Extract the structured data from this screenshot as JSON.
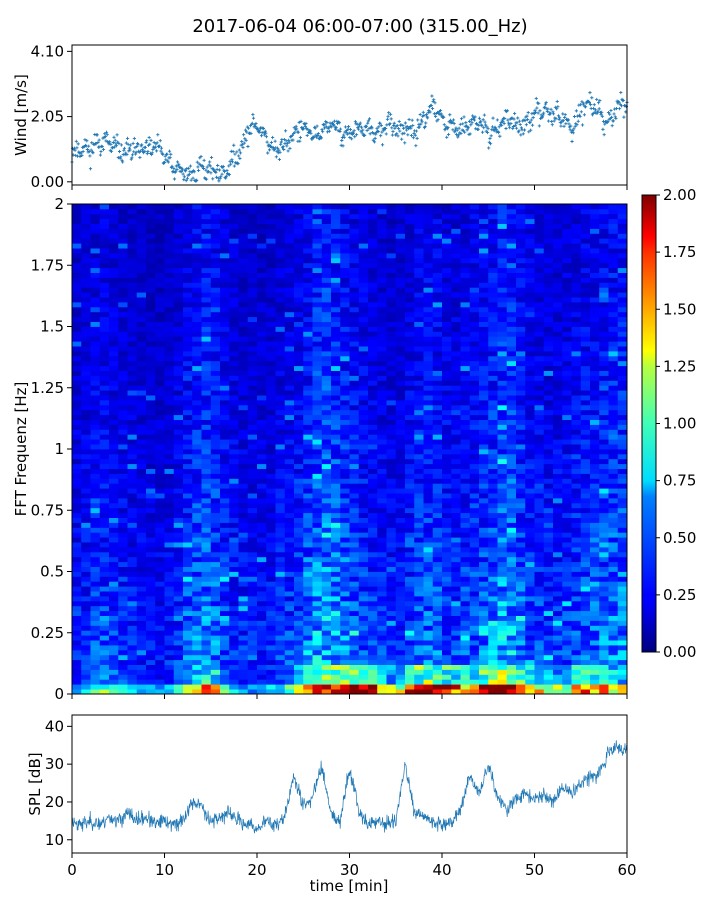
{
  "figure": {
    "title": "2017-06-04 06:00-07:00 (315.00_Hz)"
  },
  "colors": {
    "series": "#1f77b4",
    "colormap": "jet"
  },
  "chart_data": [
    {
      "type": "scatter",
      "panel": "wind",
      "title": "2017-06-04 06:00-07:00 (315.00_Hz)",
      "xlabel": "",
      "ylabel": "Wind [m/s]",
      "xlim": [
        0,
        60
      ],
      "ylim": [
        -0.1,
        4.3
      ],
      "yticks": [
        0.0,
        2.05,
        4.1
      ],
      "ytick_labels": [
        "0.00",
        "2.05",
        "4.10"
      ],
      "marker": "+",
      "grid": false,
      "x": [
        0,
        1,
        2,
        3,
        4,
        5,
        6,
        7,
        8,
        9,
        10,
        11,
        12,
        13,
        14,
        15,
        16,
        17,
        18,
        19,
        20,
        21,
        22,
        23,
        24,
        25,
        26,
        27,
        28,
        29,
        30,
        31,
        32,
        33,
        34,
        35,
        36,
        37,
        38,
        39,
        40,
        41,
        42,
        43,
        44,
        45,
        46,
        47,
        48,
        49,
        50,
        51,
        52,
        53,
        54,
        55,
        56,
        57,
        58,
        59,
        60
      ],
      "y": [
        0.9,
        1.1,
        1.0,
        1.3,
        1.2,
        1.0,
        0.9,
        1.1,
        1.0,
        1.1,
        0.8,
        0.4,
        0.3,
        0.2,
        0.5,
        0.4,
        0.2,
        0.5,
        0.9,
        1.6,
        1.8,
        1.4,
        0.9,
        1.2,
        1.5,
        1.7,
        1.4,
        1.6,
        1.8,
        1.6,
        1.5,
        1.7,
        1.6,
        1.5,
        1.8,
        1.7,
        1.6,
        1.5,
        2.0,
        2.4,
        1.9,
        1.7,
        1.6,
        1.8,
        1.9,
        1.5,
        1.7,
        2.0,
        1.8,
        1.7,
        2.1,
        2.3,
        2.2,
        2.0,
        1.6,
        2.3,
        2.5,
        2.2,
        1.8,
        2.4,
        2.6
      ]
    },
    {
      "type": "heatmap",
      "panel": "spectrogram",
      "xlabel": "",
      "ylabel": "FFT Frequenz [Hz]",
      "xlim": [
        0,
        60
      ],
      "ylim": [
        0,
        2
      ],
      "yticks": [
        0,
        0.25,
        0.5,
        0.75,
        1,
        1.25,
        1.5,
        1.75,
        2
      ],
      "ytick_labels": [
        "0",
        "0.25",
        "0.5",
        "0.75",
        "1",
        "1.25",
        "1.5",
        "1.75",
        "2"
      ],
      "colorbar": {
        "range": [
          0.0,
          2.0
        ],
        "ticks": [
          "0.00",
          "0.25",
          "0.50",
          "0.75",
          "1.00",
          "1.25",
          "1.50",
          "1.75",
          "2.00"
        ],
        "colormap": "jet",
        "location": "right"
      },
      "time_columns_min": [
        0,
        2,
        4,
        6,
        8,
        10,
        12,
        14,
        16,
        18,
        20,
        22,
        24,
        26,
        28,
        30,
        32,
        34,
        36,
        38,
        40,
        42,
        44,
        46,
        48,
        50,
        52,
        54,
        56,
        58
      ],
      "mean_intensity_per_column": [
        0.25,
        0.35,
        0.28,
        0.25,
        0.22,
        0.25,
        0.4,
        0.45,
        0.3,
        0.25,
        0.25,
        0.3,
        0.35,
        0.55,
        0.45,
        0.35,
        0.3,
        0.25,
        0.35,
        0.4,
        0.3,
        0.35,
        0.4,
        0.55,
        0.35,
        0.3,
        0.3,
        0.35,
        0.4,
        0.45
      ],
      "low_freq_peak_per_column": [
        0.6,
        1.0,
        0.8,
        0.6,
        0.5,
        0.6,
        1.2,
        1.6,
        0.7,
        0.5,
        0.6,
        0.8,
        1.2,
        2.0,
        1.8,
        2.0,
        1.6,
        0.9,
        1.8,
        2.0,
        1.6,
        1.4,
        2.0,
        2.0,
        1.6,
        1.2,
        1.0,
        1.6,
        1.4,
        1.3
      ]
    },
    {
      "type": "line",
      "panel": "spl",
      "xlabel": "time [min]",
      "ylabel": "SPL [dB]",
      "xlim": [
        0,
        60
      ],
      "ylim": [
        6.5,
        43
      ],
      "xticks": [
        0,
        10,
        20,
        30,
        40,
        50,
        60
      ],
      "xtick_labels": [
        "0",
        "10",
        "20",
        "30",
        "40",
        "50",
        "60"
      ],
      "yticks": [
        10,
        20,
        30,
        40
      ],
      "ytick_labels": [
        "10",
        "20",
        "30",
        "40"
      ],
      "grid": false,
      "x": [
        0,
        1,
        2,
        3,
        4,
        5,
        6,
        7,
        8,
        9,
        10,
        11,
        12,
        13,
        14,
        15,
        16,
        17,
        18,
        19,
        20,
        21,
        22,
        23,
        24,
        25,
        26,
        27,
        28,
        29,
        30,
        31,
        32,
        33,
        34,
        35,
        36,
        37,
        38,
        39,
        40,
        41,
        42,
        43,
        44,
        45,
        46,
        47,
        48,
        49,
        50,
        51,
        52,
        53,
        54,
        55,
        56,
        57,
        58,
        59,
        60
      ],
      "y": [
        15,
        14,
        15,
        14,
        16,
        15,
        17,
        15,
        16,
        14,
        15,
        14,
        15,
        20,
        19,
        15,
        16,
        17,
        15,
        14,
        13,
        15,
        14,
        16,
        27,
        19,
        21,
        30,
        17,
        15,
        29,
        18,
        14,
        15,
        14,
        15,
        30,
        17,
        16,
        15,
        14,
        15,
        18,
        27,
        22,
        30,
        21,
        18,
        21,
        22,
        21,
        22,
        20,
        24,
        22,
        25,
        27,
        28,
        33,
        35,
        33
      ]
    }
  ]
}
